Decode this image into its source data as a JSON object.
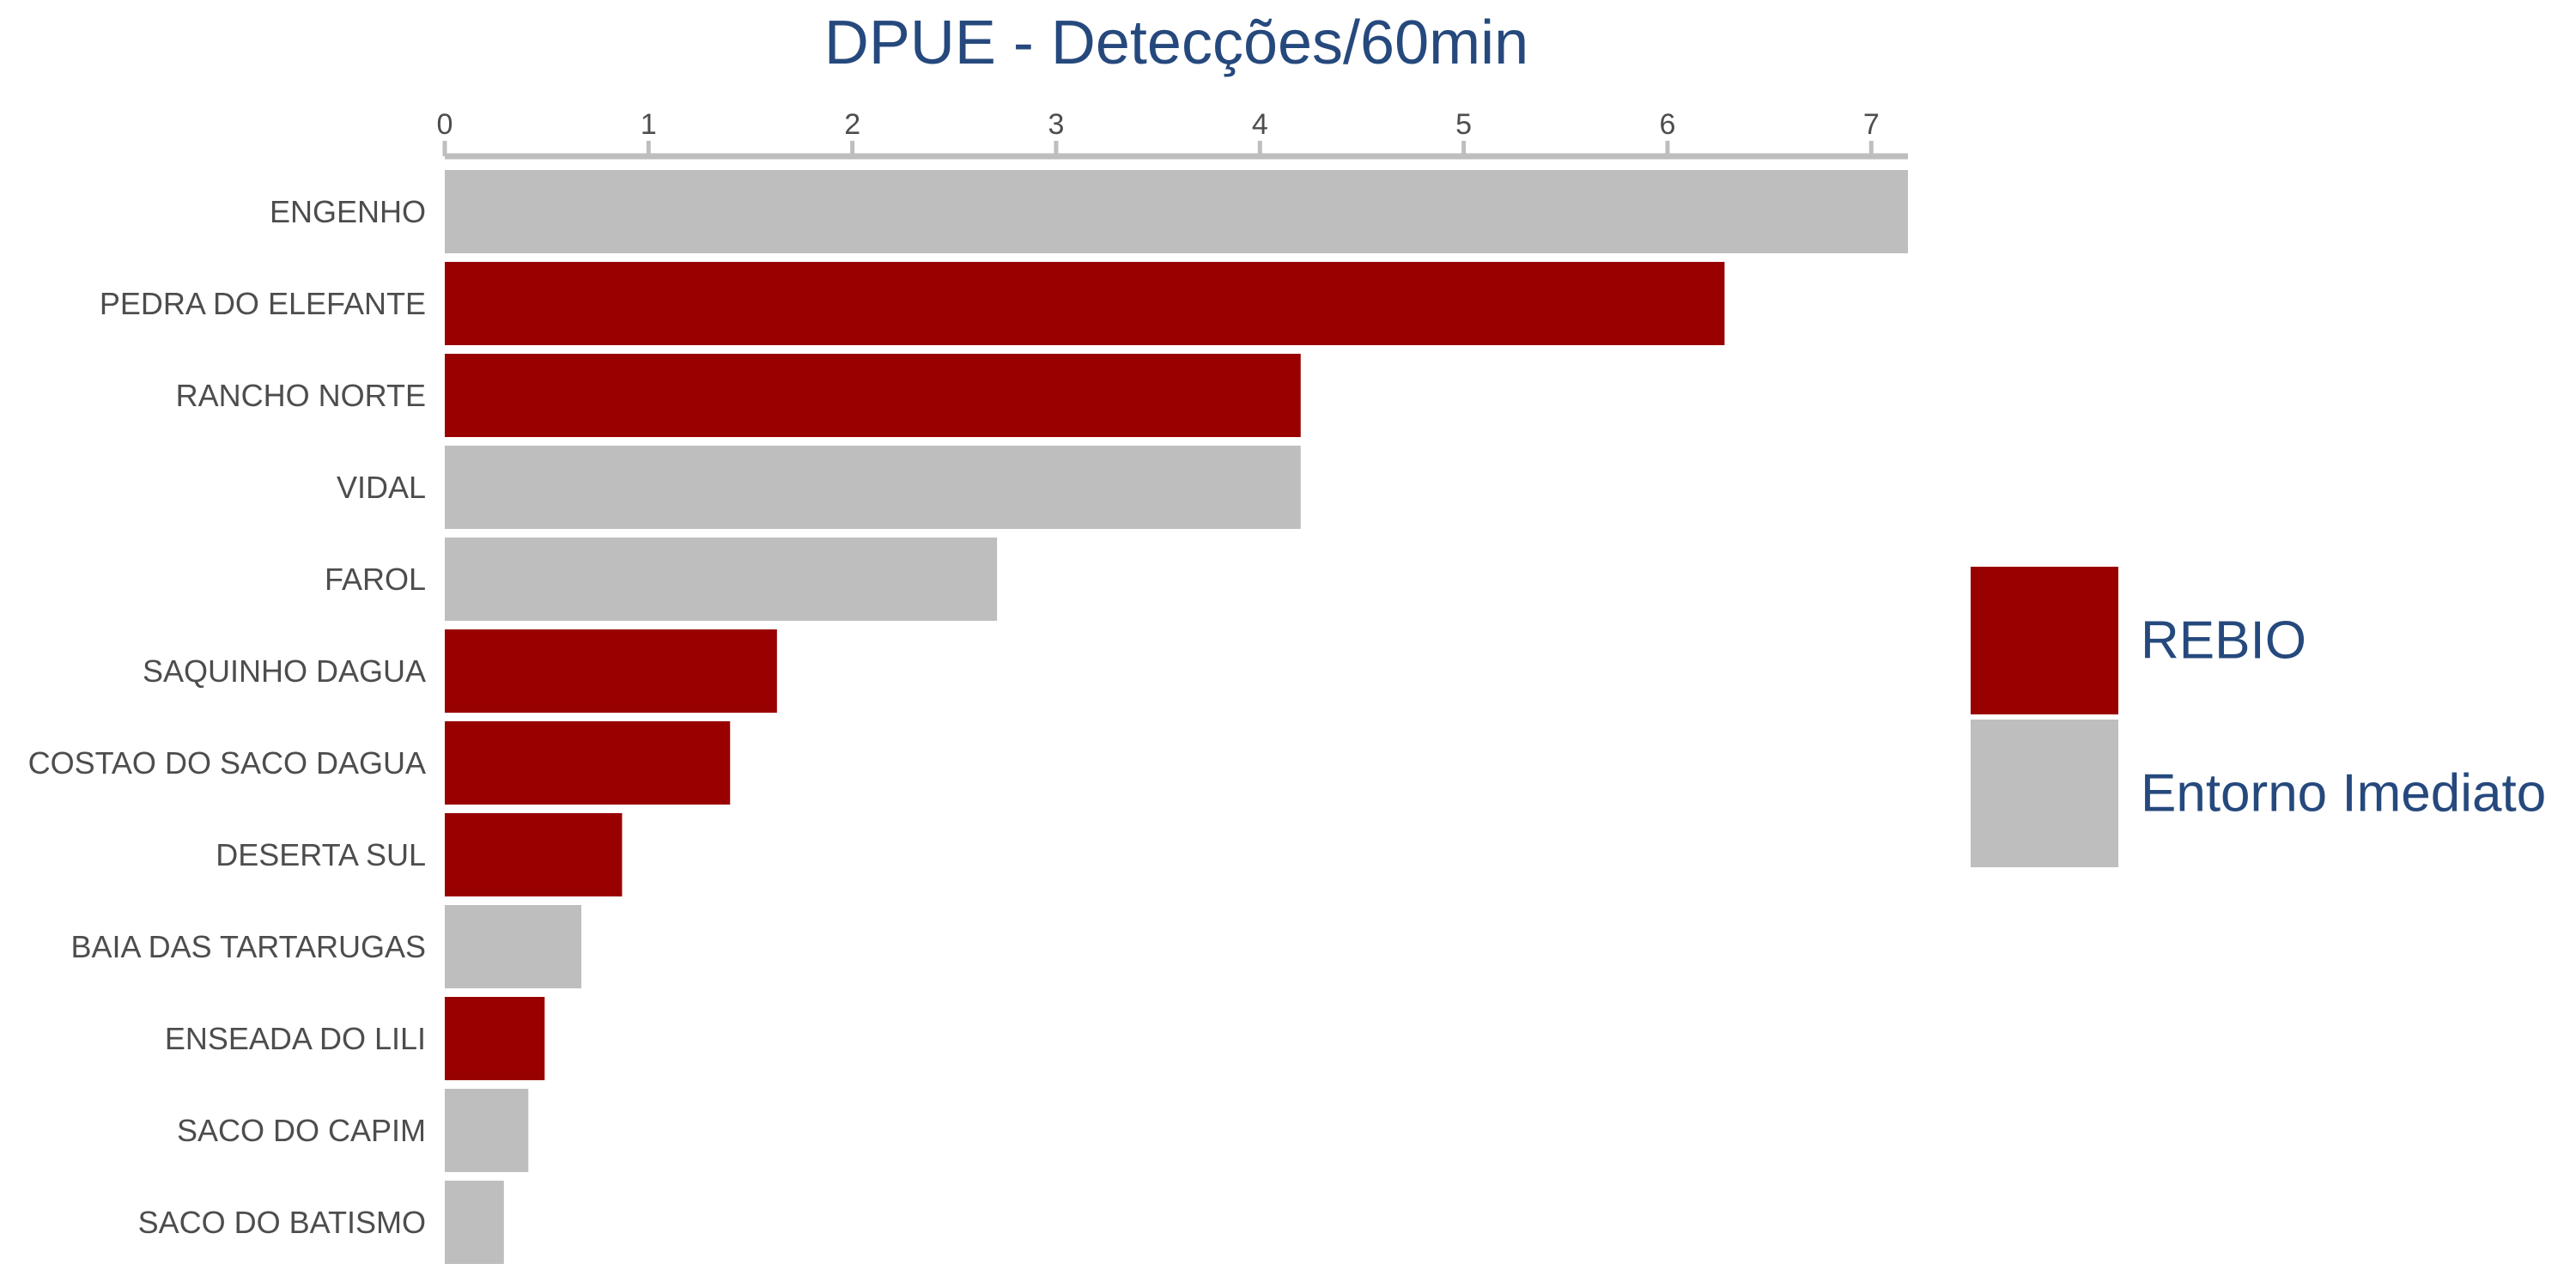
{
  "chart_data": {
    "type": "bar",
    "orientation": "horizontal",
    "title": "DPUE - Detecções/60min",
    "xlabel": "",
    "ylabel": "",
    "x_axis_position": "top",
    "xlim": [
      0,
      7.18
    ],
    "x_ticks": [
      "0",
      "1",
      "2",
      "3",
      "4",
      "5",
      "6",
      "7"
    ],
    "grid": false,
    "legend_position": "right",
    "categories": [
      "ENGENHO",
      "PEDRA DO ELEFANTE",
      "RANCHO NORTE",
      "VIDAL",
      "FAROL",
      "SAQUINHO DAGUA",
      "COSTAO DO SACO DAGUA",
      "DESERTA SUL",
      "BAIA DAS TARTARUGAS",
      "ENSEADA DO LILI",
      "SACO DO CAPIM",
      "SACO DO BATISMO"
    ],
    "values": [
      7.18,
      6.28,
      4.2,
      4.2,
      2.71,
      1.63,
      1.4,
      0.87,
      0.67,
      0.49,
      0.41,
      0.29
    ],
    "groups": [
      "Entorno Imediato",
      "REBIO",
      "REBIO",
      "Entorno Imediato",
      "Entorno Imediato",
      "REBIO",
      "REBIO",
      "REBIO",
      "Entorno Imediato",
      "REBIO",
      "Entorno Imediato",
      "Entorno Imediato"
    ],
    "legend": [
      {
        "name": "REBIO",
        "color": "#990000"
      },
      {
        "name": "Entorno Imediato",
        "color": "#bebebe"
      }
    ]
  },
  "colors": {
    "title": "#26497d",
    "legend_text": "#26497d",
    "axis": "#bebebe",
    "label": "#4d4d4d"
  }
}
